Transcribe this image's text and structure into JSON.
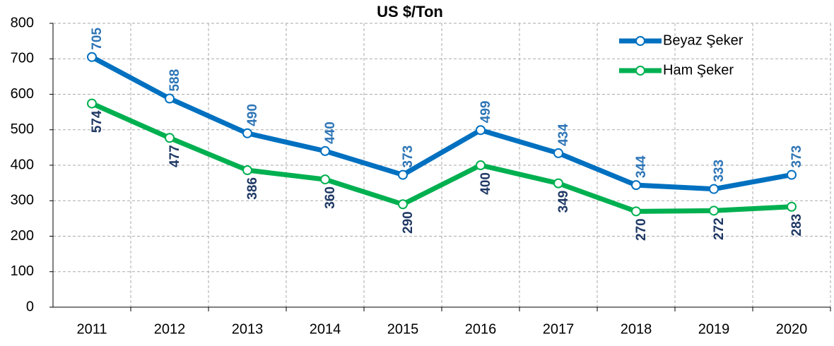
{
  "chart_data": {
    "type": "line",
    "title": "US $/Ton",
    "categories": [
      "2011",
      "2012",
      "2013",
      "2014",
      "2015",
      "2016",
      "2017",
      "2018",
      "2019",
      "2020"
    ],
    "series": [
      {
        "name": "Beyaz Şeker",
        "color": "#0070c0",
        "label_color": "#2e75b6",
        "values": [
          705,
          588,
          490,
          440,
          373,
          499,
          434,
          344,
          333,
          373
        ]
      },
      {
        "name": "Ham Şeker",
        "color": "#00b050",
        "label_color": "#1f3864",
        "values": [
          574,
          477,
          386,
          360,
          290,
          400,
          349,
          270,
          272,
          283
        ]
      }
    ],
    "ylim": [
      0,
      800
    ],
    "yticks": [
      0,
      100,
      200,
      300,
      400,
      500,
      600,
      700,
      800
    ],
    "grid": true,
    "legend": "top-right"
  }
}
